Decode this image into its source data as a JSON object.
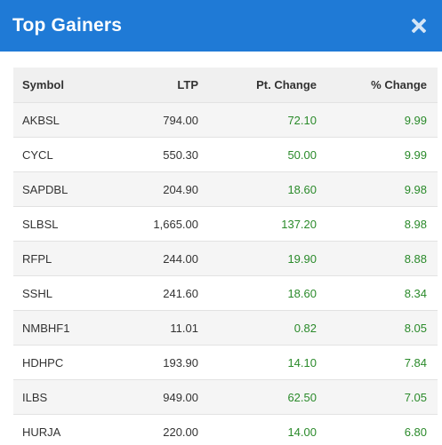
{
  "header": {
    "title": "Top Gainers",
    "close_icon": "close-icon"
  },
  "table": {
    "columns": [
      "Symbol",
      "LTP",
      "Pt. Change",
      "% Change"
    ],
    "rows": [
      {
        "symbol": "AKBSL",
        "ltp": "794.00",
        "pt_change": "72.10",
        "pct_change": "9.99"
      },
      {
        "symbol": "CYCL",
        "ltp": "550.30",
        "pt_change": "50.00",
        "pct_change": "9.99"
      },
      {
        "symbol": "SAPDBL",
        "ltp": "204.90",
        "pt_change": "18.60",
        "pct_change": "9.98"
      },
      {
        "symbol": "SLBSL",
        "ltp": "1,665.00",
        "pt_change": "137.20",
        "pct_change": "8.98"
      },
      {
        "symbol": "RFPL",
        "ltp": "244.00",
        "pt_change": "19.90",
        "pct_change": "8.88"
      },
      {
        "symbol": "SSHL",
        "ltp": "241.60",
        "pt_change": "18.60",
        "pct_change": "8.34"
      },
      {
        "symbol": "NMBHF1",
        "ltp": "11.01",
        "pt_change": "0.82",
        "pct_change": "8.05"
      },
      {
        "symbol": "HDHPC",
        "ltp": "193.90",
        "pt_change": "14.10",
        "pct_change": "7.84"
      },
      {
        "symbol": "ILBS",
        "ltp": "949.00",
        "pt_change": "62.50",
        "pct_change": "7.05"
      },
      {
        "symbol": "HURJA",
        "ltp": "220.00",
        "pt_change": "14.00",
        "pct_change": "6.80"
      }
    ]
  },
  "colors": {
    "header_bg": "#1f7ad6",
    "positive": "#2a8a2a"
  }
}
